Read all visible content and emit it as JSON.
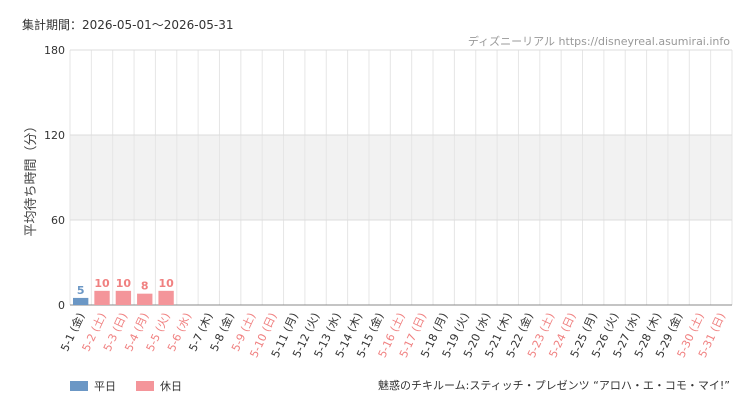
{
  "header": {
    "period_label": "集計期間：2026-05-01〜2026-05-31",
    "source": "ディズニーリアル https://disneyreal.asumirai.info"
  },
  "footer": {
    "attraction": "魅惑のチキルーム:スティッチ・プレゼンツ “アロハ・エ・コモ・マイ!”"
  },
  "colors": {
    "weekday": "#6b97c5",
    "holiday": "#f4959a",
    "holiday_text": "#f08080",
    "weekday_text": "#333333",
    "band": "#f2f2f2"
  },
  "chart_data": {
    "type": "bar",
    "ylabel": "平均待ち時間（分）",
    "ylim": [
      0,
      180
    ],
    "yticks": [
      0,
      60,
      120,
      180
    ],
    "categories": [
      "5-1 (金)",
      "5-2 (土)",
      "5-3 (日)",
      "5-4 (月)",
      "5-5 (火)",
      "5-6 (水)",
      "5-7 (木)",
      "5-8 (金)",
      "5-9 (土)",
      "5-10 (日)",
      "5-11 (月)",
      "5-12 (火)",
      "5-13 (水)",
      "5-14 (木)",
      "5-15 (金)",
      "5-16 (土)",
      "5-17 (日)",
      "5-18 (月)",
      "5-19 (火)",
      "5-20 (水)",
      "5-21 (木)",
      "5-22 (金)",
      "5-23 (土)",
      "5-24 (日)",
      "5-25 (月)",
      "5-26 (火)",
      "5-27 (水)",
      "5-28 (木)",
      "5-29 (金)",
      "5-30 (土)",
      "5-31 (日)"
    ],
    "day_type": [
      "weekday",
      "holiday",
      "holiday",
      "holiday",
      "holiday",
      "holiday",
      "weekday",
      "weekday",
      "holiday",
      "holiday",
      "weekday",
      "weekday",
      "weekday",
      "weekday",
      "weekday",
      "holiday",
      "holiday",
      "weekday",
      "weekday",
      "weekday",
      "weekday",
      "weekday",
      "holiday",
      "holiday",
      "weekday",
      "weekday",
      "weekday",
      "weekday",
      "weekday",
      "holiday",
      "holiday"
    ],
    "values": [
      5,
      10,
      10,
      8,
      10,
      null,
      null,
      null,
      null,
      null,
      null,
      null,
      null,
      null,
      null,
      null,
      null,
      null,
      null,
      null,
      null,
      null,
      null,
      null,
      null,
      null,
      null,
      null,
      null,
      null,
      null
    ],
    "legend": [
      {
        "name": "平日",
        "key": "weekday"
      },
      {
        "name": "休日",
        "key": "holiday"
      }
    ]
  }
}
